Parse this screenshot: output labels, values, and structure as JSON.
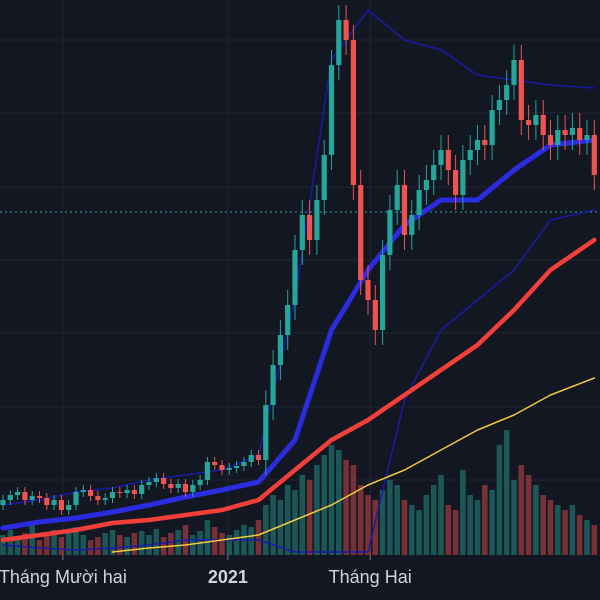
{
  "chart_data": {
    "type": "candlestick",
    "xlim": [
      -0.41,
      81.78
    ],
    "ylim": [
      0,
      555
    ],
    "volume_ylim": [
      0,
      555
    ],
    "xticks": [
      {
        "value": 8.2,
        "label": "Tháng Mười hai"
      },
      {
        "value": 30.8,
        "label": "2021"
      },
      {
        "value": 50.3,
        "label": "Tháng Hai"
      }
    ],
    "ygrid": [
      75,
      148,
      222,
      295,
      368,
      442,
      515
    ],
    "up_color": "#26a69a",
    "down_color": "#ef5350",
    "candles": {
      "open": [
        50,
        55,
        60,
        63,
        55,
        59,
        57,
        50,
        55,
        45,
        50,
        63,
        65,
        59,
        55,
        57,
        63,
        62,
        65,
        61,
        70,
        73,
        77,
        71,
        67,
        71,
        63,
        70,
        75,
        93,
        90,
        85,
        87,
        89,
        93,
        100,
        95,
        150,
        190,
        220,
        250,
        305,
        340,
        315,
        355,
        400,
        490,
        535,
        515,
        370,
        275,
        255,
        225,
        300,
        345,
        370,
        320,
        340,
        365,
        375,
        390,
        405,
        385,
        360,
        395,
        405,
        415,
        410,
        445,
        455,
        470,
        495,
        435,
        430,
        440,
        420,
        410,
        425,
        420,
        427,
        415,
        420
      ],
      "high": [
        60,
        65,
        68,
        68,
        64,
        64,
        62,
        60,
        60,
        55,
        68,
        70,
        70,
        64,
        62,
        68,
        68,
        70,
        70,
        75,
        78,
        82,
        82,
        76,
        76,
        76,
        75,
        80,
        98,
        98,
        95,
        92,
        94,
        98,
        105,
        105,
        165,
        205,
        235,
        265,
        320,
        355,
        355,
        370,
        415,
        505,
        550,
        550,
        530,
        385,
        290,
        270,
        315,
        360,
        385,
        385,
        355,
        380,
        390,
        405,
        420,
        420,
        400,
        410,
        420,
        430,
        430,
        460,
        470,
        485,
        510,
        510,
        450,
        455,
        455,
        435,
        440,
        440,
        442,
        442,
        435,
        435
      ],
      "low": [
        45,
        50,
        55,
        50,
        50,
        52,
        45,
        45,
        40,
        40,
        45,
        58,
        54,
        50,
        50,
        52,
        57,
        57,
        56,
        56,
        65,
        68,
        66,
        62,
        62,
        58,
        58,
        65,
        70,
        85,
        80,
        80,
        82,
        84,
        88,
        90,
        80,
        135,
        175,
        205,
        235,
        290,
        300,
        300,
        340,
        385,
        475,
        500,
        355,
        260,
        240,
        210,
        210,
        285,
        330,
        305,
        305,
        325,
        350,
        360,
        375,
        370,
        345,
        345,
        380,
        390,
        395,
        395,
        430,
        440,
        455,
        420,
        415,
        415,
        405,
        395,
        395,
        405,
        405,
        400,
        400,
        365
      ],
      "close": [
        55,
        60,
        63,
        55,
        59,
        57,
        50,
        55,
        45,
        50,
        63,
        65,
        59,
        55,
        57,
        63,
        62,
        65,
        61,
        70,
        73,
        77,
        71,
        67,
        71,
        63,
        70,
        75,
        93,
        90,
        85,
        87,
        89,
        93,
        100,
        95,
        150,
        190,
        220,
        250,
        305,
        340,
        315,
        355,
        400,
        490,
        535,
        515,
        370,
        275,
        255,
        225,
        300,
        345,
        370,
        320,
        340,
        365,
        375,
        390,
        405,
        385,
        360,
        395,
        405,
        415,
        410,
        445,
        455,
        470,
        495,
        435,
        430,
        440,
        420,
        410,
        425,
        420,
        427,
        415,
        420,
        380
      ]
    },
    "volume": [
      20,
      25,
      18,
      22,
      30,
      15,
      20,
      25,
      18,
      22,
      28,
      20,
      15,
      18,
      22,
      25,
      20,
      18,
      22,
      24,
      20,
      26,
      18,
      22,
      25,
      30,
      20,
      24,
      35,
      28,
      22,
      20,
      25,
      30,
      28,
      35,
      50,
      60,
      55,
      70,
      65,
      80,
      75,
      90,
      100,
      110,
      105,
      95,
      90,
      70,
      60,
      55,
      65,
      75,
      70,
      55,
      50,
      45,
      60,
      70,
      80,
      50,
      45,
      85,
      60,
      55,
      70,
      65,
      110,
      125,
      75,
      90,
      80,
      70,
      60,
      55,
      50,
      45,
      50,
      40,
      35,
      30
    ],
    "price_line": {
      "value": 343,
      "color": "#26a69a"
    },
    "lines": [
      {
        "color": "#1a1aa8",
        "width": 1.5,
        "x": [
          0,
          5,
          10,
          15,
          20,
          25,
          30,
          35,
          40,
          45,
          50,
          55,
          60,
          65,
          70,
          75,
          81
        ],
        "values": [
          50,
          55,
          63,
          67,
          75,
          80,
          85,
          100,
          255,
          495,
          545,
          515,
          505,
          480,
          475,
          470,
          467
        ]
      },
      {
        "color": "#1a1aa8",
        "width": 1.5,
        "x": [
          0,
          5,
          10,
          15,
          20,
          25,
          30,
          35,
          40,
          45,
          50,
          55,
          60,
          65,
          70,
          75,
          81
        ],
        "values": [
          10,
          7,
          5,
          7,
          10,
          15,
          15,
          15,
          3,
          3,
          3,
          155,
          225,
          255,
          285,
          335,
          345
        ]
      },
      {
        "color": "#f5c842",
        "width": 1.5,
        "x": [
          0,
          5,
          10,
          15,
          20,
          25,
          30,
          35,
          40,
          45,
          50,
          55,
          60,
          65,
          70,
          75,
          81
        ],
        "values": [
          null,
          null,
          null,
          3,
          7,
          10,
          15,
          20,
          35,
          50,
          70,
          85,
          105,
          125,
          140,
          160,
          177
        ]
      },
      {
        "color": "#f23f3a",
        "width": 4.5,
        "x": [
          0,
          5,
          10,
          15,
          20,
          25,
          30,
          35,
          40,
          45,
          50,
          55,
          60,
          65,
          70,
          75,
          81
        ],
        "values": [
          15,
          20,
          25,
          32,
          35,
          40,
          45,
          55,
          85,
          115,
          135,
          160,
          185,
          210,
          245,
          285,
          315
        ]
      },
      {
        "color": "#2b2be0",
        "width": 5,
        "x": [
          0,
          5,
          10,
          15,
          20,
          25,
          30,
          35,
          40,
          45,
          50,
          55,
          60,
          65,
          70,
          75,
          81
        ],
        "values": [
          27,
          33,
          37,
          43,
          50,
          58,
          65,
          73,
          115,
          225,
          285,
          330,
          355,
          355,
          385,
          410,
          415
        ]
      }
    ]
  }
}
